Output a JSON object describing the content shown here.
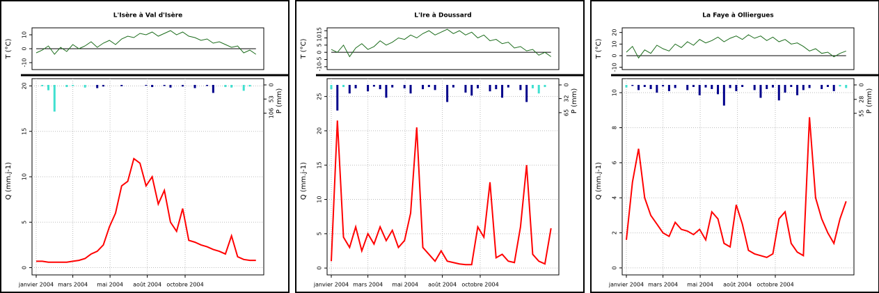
{
  "chart_data": [
    {
      "type": "hydro",
      "title": "L'Isère à Val d'Isère",
      "x": [
        0,
        10,
        20,
        30,
        40,
        50,
        60,
        70,
        80,
        90,
        100,
        110,
        120,
        130,
        140,
        150,
        160,
        170,
        180,
        190,
        200,
        210,
        220,
        230,
        240,
        250,
        260,
        270,
        280,
        290,
        300,
        310,
        320,
        330,
        340,
        350,
        360
      ],
      "xlim": [
        0,
        366
      ],
      "xticks": [
        {
          "value": 0,
          "label": "janvier 2004"
        },
        {
          "value": 60,
          "label": "mars 2004"
        },
        {
          "value": 121,
          "label": "mai 2004"
        },
        {
          "value": 182,
          "label": "août 2004"
        },
        {
          "value": 244,
          "label": "octobre 2004"
        }
      ],
      "temperature": {
        "ylabel": "T (°C)",
        "ylim": [
          -15,
          15
        ],
        "yticks": [
          -10,
          0,
          10
        ],
        "hline": 0,
        "color": "#1a6b1a",
        "values": [
          -3,
          -1,
          2,
          -4,
          1,
          -2,
          3,
          0,
          2,
          5,
          1,
          4,
          6,
          3,
          7,
          9,
          8,
          11,
          10,
          12,
          9,
          11,
          13,
          10,
          12,
          9,
          8,
          6,
          7,
          4,
          5,
          3,
          1,
          2,
          -3,
          -1,
          -4
        ]
      },
      "precipitation": {
        "ylabel": "P (mm)",
        "y2lim": [
          0,
          120
        ],
        "y2ticks": [
          0,
          53,
          106
        ],
        "values": [
          0,
          5,
          20,
          100,
          0,
          8,
          4,
          0,
          10,
          0,
          12,
          6,
          0,
          0,
          5,
          0,
          0,
          0,
          3,
          8,
          0,
          4,
          10,
          0,
          6,
          0,
          12,
          0,
          4,
          30,
          0,
          8,
          10,
          0,
          22,
          6,
          0
        ],
        "colors": [
          "#40e0d0",
          "#40e0d0",
          "#40e0d0",
          "#40e0d0",
          "#40e0d0",
          "#40e0d0",
          "#40e0d0",
          "#40e0d0",
          "#40e0d0",
          "#40e0d0",
          "#00008b",
          "#00008b",
          "#00008b",
          "#00008b",
          "#00008b",
          "#00008b",
          "#00008b",
          "#00008b",
          "#00008b",
          "#00008b",
          "#00008b",
          "#00008b",
          "#00008b",
          "#00008b",
          "#00008b",
          "#00008b",
          "#00008b",
          "#00008b",
          "#00008b",
          "#00008b",
          "#00008b",
          "#40e0d0",
          "#40e0d0",
          "#40e0d0",
          "#40e0d0",
          "#40e0d0",
          "#40e0d0"
        ]
      },
      "discharge": {
        "ylabel": "Q (mm.j-1)",
        "ylim": [
          -0.8,
          20.8
        ],
        "yticks": [
          0,
          5,
          10,
          15,
          20
        ],
        "color": "#ff0000",
        "grid": true,
        "values": [
          0.7,
          0.7,
          0.6,
          0.6,
          0.6,
          0.6,
          0.7,
          0.8,
          1.0,
          1.5,
          1.8,
          2.5,
          4.5,
          6,
          9,
          9.5,
          12,
          11.5,
          9,
          10,
          7,
          8.5,
          5,
          4,
          6.5,
          3,
          2.8,
          2.5,
          2.3,
          2,
          1.8,
          1.5,
          3.5,
          1.2,
          0.9,
          0.8,
          0.8
        ]
      }
    },
    {
      "type": "hydro",
      "title": "L'Ire à Doussard",
      "x": [
        0,
        10,
        20,
        30,
        40,
        50,
        60,
        70,
        80,
        90,
        100,
        110,
        120,
        130,
        140,
        150,
        160,
        170,
        180,
        190,
        200,
        210,
        220,
        230,
        240,
        250,
        260,
        270,
        280,
        290,
        300,
        310,
        320,
        330,
        340,
        350,
        360
      ],
      "xlim": [
        0,
        366
      ],
      "xticks": [
        {
          "value": 0,
          "label": "janvier 2004"
        },
        {
          "value": 60,
          "label": "mars 2004"
        },
        {
          "value": 121,
          "label": "mai 2004"
        },
        {
          "value": 182,
          "label": "août 2004"
        },
        {
          "value": 244,
          "label": "octobre 2004"
        }
      ],
      "temperature": {
        "ylabel": "T (°C)",
        "ylim": [
          -12,
          17
        ],
        "yticks": [
          -10,
          -5,
          0,
          5,
          10,
          15
        ],
        "hline": 0,
        "color": "#1a6b1a",
        "values": [
          2,
          0,
          5,
          -3,
          3,
          6,
          2,
          4,
          8,
          5,
          7,
          10,
          9,
          12,
          10,
          13,
          15,
          12,
          14,
          16,
          13,
          15,
          12,
          14,
          10,
          12,
          8,
          9,
          6,
          7,
          3,
          4,
          1,
          2,
          -2,
          0,
          -3
        ]
      },
      "precipitation": {
        "ylabel": "P (mm)",
        "y2lim": [
          0,
          75
        ],
        "y2ticks": [
          0,
          32,
          65
        ],
        "values": [
          10,
          60,
          5,
          20,
          8,
          0,
          15,
          4,
          10,
          30,
          6,
          0,
          8,
          20,
          0,
          10,
          5,
          12,
          0,
          40,
          6,
          0,
          18,
          25,
          8,
          0,
          15,
          10,
          30,
          6,
          0,
          12,
          40,
          8,
          20,
          5,
          0
        ],
        "colors": [
          "#40e0d0",
          "#00008b",
          "#40e0d0",
          "#00008b",
          "#00008b",
          "#00008b",
          "#00008b",
          "#00008b",
          "#00008b",
          "#00008b",
          "#00008b",
          "#00008b",
          "#00008b",
          "#00008b",
          "#00008b",
          "#00008b",
          "#00008b",
          "#00008b",
          "#00008b",
          "#00008b",
          "#00008b",
          "#00008b",
          "#00008b",
          "#00008b",
          "#00008b",
          "#00008b",
          "#00008b",
          "#00008b",
          "#00008b",
          "#00008b",
          "#00008b",
          "#00008b",
          "#00008b",
          "#40e0d0",
          "#40e0d0",
          "#40e0d0",
          "#40e0d0"
        ]
      },
      "discharge": {
        "ylabel": "Q (mm.j-1)",
        "ylim": [
          -1,
          27.6
        ],
        "yticks": [
          0,
          5,
          10,
          15,
          20,
          25
        ],
        "color": "#ff0000",
        "grid": true,
        "values": [
          1,
          21.5,
          4.5,
          3,
          6,
          2.5,
          5,
          3.5,
          6,
          4,
          5.5,
          3,
          4,
          8,
          20.5,
          3,
          2,
          1,
          2.5,
          1,
          0.8,
          0.6,
          0.5,
          0.5,
          6,
          4.5,
          12.5,
          1.5,
          2,
          1,
          0.8,
          6,
          15,
          2,
          1,
          0.6,
          5.8
        ]
      }
    },
    {
      "type": "hydro",
      "title": "La Faye à Olliergues",
      "x": [
        0,
        10,
        20,
        30,
        40,
        50,
        60,
        70,
        80,
        90,
        100,
        110,
        120,
        130,
        140,
        150,
        160,
        170,
        180,
        190,
        200,
        210,
        220,
        230,
        240,
        250,
        260,
        270,
        280,
        290,
        300,
        310,
        320,
        330,
        340,
        350,
        360
      ],
      "xlim": [
        0,
        366
      ],
      "xticks": [
        {
          "value": 0,
          "label": "janvier 2004"
        },
        {
          "value": 60,
          "label": "mars 2004"
        },
        {
          "value": 121,
          "label": "mai 2004"
        },
        {
          "value": 182,
          "label": "août 2004"
        },
        {
          "value": 244,
          "label": "octobre 2004"
        }
      ],
      "temperature": {
        "ylabel": "T (°C)",
        "ylim": [
          -12,
          24
        ],
        "yticks": [
          -10,
          0,
          10,
          20
        ],
        "hline": 0,
        "color": "#1a6b1a",
        "values": [
          3,
          8,
          -2,
          5,
          2,
          9,
          6,
          4,
          10,
          7,
          12,
          9,
          14,
          11,
          13,
          16,
          12,
          15,
          17,
          14,
          18,
          15,
          17,
          13,
          16,
          12,
          14,
          10,
          11,
          8,
          4,
          6,
          2,
          3,
          -1,
          2,
          4
        ]
      },
      "precipitation": {
        "ylabel": "P (mm)",
        "y2lim": [
          0,
          62
        ],
        "y2ticks": [
          0,
          28,
          55
        ],
        "values": [
          5,
          2,
          10,
          4,
          8,
          15,
          3,
          12,
          6,
          0,
          10,
          4,
          20,
          5,
          8,
          18,
          40,
          6,
          12,
          4,
          0,
          10,
          25,
          8,
          5,
          30,
          15,
          4,
          20,
          10,
          6,
          0,
          8,
          4,
          12,
          3,
          6
        ],
        "colors": [
          "#40e0d0",
          "#00008b",
          "#00008b",
          "#00008b",
          "#00008b",
          "#00008b",
          "#00008b",
          "#00008b",
          "#00008b",
          "#00008b",
          "#00008b",
          "#00008b",
          "#00008b",
          "#00008b",
          "#00008b",
          "#00008b",
          "#00008b",
          "#00008b",
          "#00008b",
          "#00008b",
          "#00008b",
          "#00008b",
          "#00008b",
          "#00008b",
          "#00008b",
          "#00008b",
          "#00008b",
          "#00008b",
          "#00008b",
          "#00008b",
          "#00008b",
          "#00008b",
          "#00008b",
          "#00008b",
          "#00008b",
          "#40e0d0",
          "#40e0d0"
        ]
      },
      "discharge": {
        "ylabel": "Q (mm.j-1)",
        "ylim": [
          -0.4,
          10.8
        ],
        "yticks": [
          0,
          2,
          4,
          6,
          8,
          10
        ],
        "color": "#ff0000",
        "grid": true,
        "values": [
          1.6,
          4.9,
          6.8,
          4,
          3,
          2.5,
          2,
          1.8,
          2.6,
          2.2,
          2.1,
          1.9,
          2.2,
          1.6,
          3.2,
          2.8,
          1.4,
          1.2,
          3.6,
          2.5,
          1,
          0.8,
          0.7,
          0.6,
          0.8,
          2.8,
          3.2,
          1.4,
          0.9,
          0.7,
          8.6,
          4,
          2.8,
          2,
          1.4,
          2.8,
          3.8
        ]
      }
    }
  ]
}
